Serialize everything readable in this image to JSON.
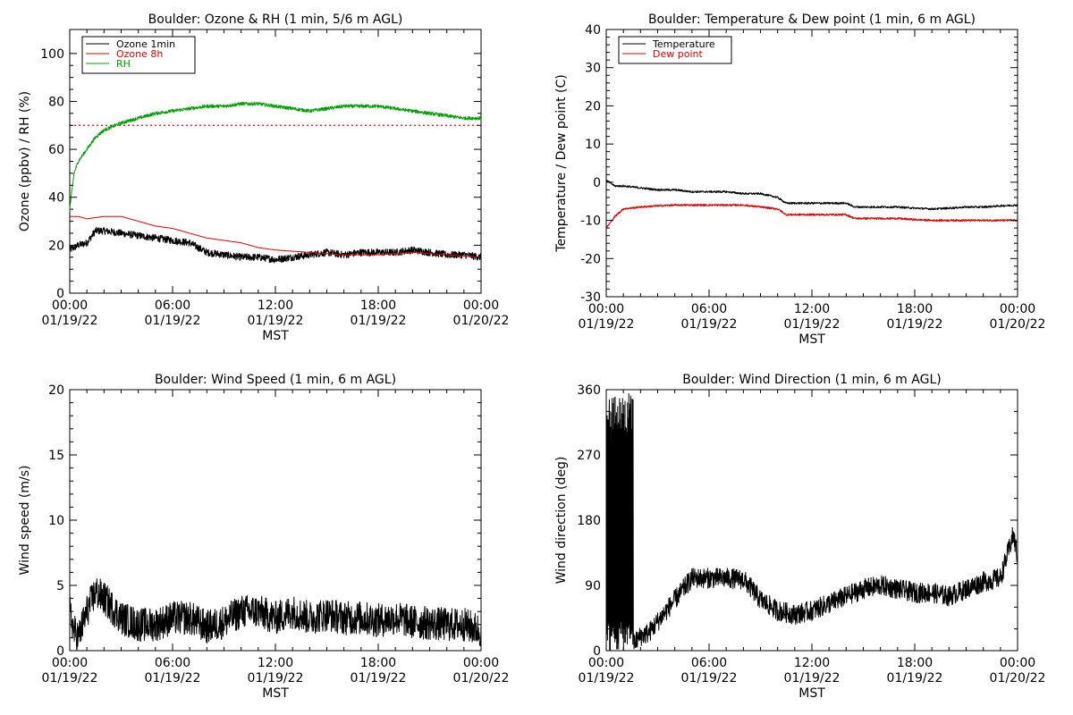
{
  "colors": {
    "black": "#000000",
    "red": "#e00000",
    "green": "#00a000"
  },
  "xaxis": {
    "tick_times": [
      "00:00",
      "06:00",
      "12:00",
      "18:00",
      "00:00"
    ],
    "tick_dates": [
      "01/19/22",
      "01/19/22",
      "01/19/22",
      "01/19/22",
      "01/20/22"
    ],
    "xlabel": "MST"
  },
  "chart_data": [
    {
      "type": "line",
      "title": "Boulder: Ozone & RH (1 min, 5/6 m AGL)",
      "ylabel": "Ozone (ppbv) / RH (%)",
      "xlim": [
        "01/19/22 00:00",
        "01/20/22 00:00"
      ],
      "ylim": [
        0,
        110
      ],
      "yticks": [
        0,
        20,
        40,
        60,
        80,
        100
      ],
      "legend_position": "top-left",
      "reference_line": {
        "y": 70,
        "style": "dotted",
        "color": "#e00000"
      },
      "series": [
        {
          "name": "Ozone 1min",
          "color": "#000000",
          "noise": 1.5,
          "x": [
            "01/19/22 00:00",
            "01/19/22 00:30",
            "01/19/22 01:00",
            "01/19/22 01:30",
            "01/19/22 02:00",
            "01/19/22 03:00",
            "01/19/22 04:00",
            "01/19/22 05:00",
            "01/19/22 06:00",
            "01/19/22 07:00",
            "01/19/22 08:00",
            "01/19/22 09:00",
            "01/19/22 10:00",
            "01/19/22 11:00",
            "01/19/22 12:00",
            "01/19/22 13:00",
            "01/19/22 14:00",
            "01/19/22 15:00",
            "01/19/22 16:00",
            "01/19/22 17:00",
            "01/19/22 18:00",
            "01/19/22 19:00",
            "01/19/22 20:00",
            "01/19/22 21:00",
            "01/19/22 22:00",
            "01/19/22 23:00",
            "01/20/22 00:00"
          ],
          "y": [
            18,
            20,
            21,
            26,
            26,
            25,
            24,
            23,
            22,
            21,
            17,
            16,
            15,
            15,
            14,
            15,
            16,
            17,
            16,
            17,
            17,
            17,
            18,
            17,
            16,
            16,
            15
          ]
        },
        {
          "name": "Ozone 8h",
          "color": "#e00000",
          "noise": 0,
          "x": [
            "01/19/22 00:00",
            "01/19/22 00:30",
            "01/19/22 01:00",
            "01/19/22 02:00",
            "01/19/22 03:00",
            "01/19/22 04:00",
            "01/19/22 05:00",
            "01/19/22 06:00",
            "01/19/22 07:00",
            "01/19/22 08:00",
            "01/19/22 09:00",
            "01/19/22 10:00",
            "01/19/22 11:00",
            "01/19/22 12:00",
            "01/19/22 14:00",
            "01/19/22 16:00",
            "01/19/22 18:00",
            "01/19/22 20:00",
            "01/19/22 22:00",
            "01/20/22 00:00"
          ],
          "y": [
            32,
            32,
            31,
            32,
            32,
            30,
            28,
            27,
            25,
            23,
            22,
            21,
            19,
            18,
            17,
            16,
            16,
            17,
            16,
            15
          ]
        },
        {
          "name": "RH",
          "color": "#00a000",
          "noise": 0.7,
          "x": [
            "01/19/22 00:00",
            "01/19/22 00:15",
            "01/19/22 00:30",
            "01/19/22 01:00",
            "01/19/22 01:30",
            "01/19/22 02:00",
            "01/19/22 03:00",
            "01/19/22 04:00",
            "01/19/22 05:00",
            "01/19/22 06:00",
            "01/19/22 07:00",
            "01/19/22 08:00",
            "01/19/22 09:00",
            "01/19/22 10:00",
            "01/19/22 11:00",
            "01/19/22 12:00",
            "01/19/22 13:00",
            "01/19/22 14:00",
            "01/19/22 15:00",
            "01/19/22 16:00",
            "01/19/22 17:00",
            "01/19/22 18:00",
            "01/19/22 19:00",
            "01/19/22 20:00",
            "01/19/22 21:00",
            "01/19/22 22:00",
            "01/19/22 23:00",
            "01/20/22 00:00"
          ],
          "y": [
            35,
            50,
            55,
            60,
            65,
            68,
            71,
            73,
            75,
            76,
            77,
            78,
            78,
            79,
            79,
            78,
            77,
            76,
            77,
            78,
            78,
            78,
            77,
            76,
            75,
            74,
            73,
            73
          ]
        }
      ]
    },
    {
      "type": "line",
      "title": "Boulder: Temperature & Dew point (1 min, 6 m AGL)",
      "ylabel": "Temperature / Dew point (C)",
      "xlim": [
        "01/19/22 00:00",
        "01/20/22 00:00"
      ],
      "ylim": [
        -30,
        40
      ],
      "yticks": [
        -30,
        -20,
        -10,
        0,
        10,
        20,
        30,
        40
      ],
      "legend_position": "top-left",
      "series": [
        {
          "name": "Temperature",
          "color": "#000000",
          "noise": 0.25,
          "x": [
            "01/19/22 00:00",
            "01/19/22 00:30",
            "01/19/22 01:00",
            "01/19/22 02:00",
            "01/19/22 03:00",
            "01/19/22 04:00",
            "01/19/22 05:00",
            "01/19/22 06:00",
            "01/19/22 07:00",
            "01/19/22 08:00",
            "01/19/22 09:00",
            "01/19/22 10:00",
            "01/19/22 10:30",
            "01/19/22 11:00",
            "01/19/22 12:00",
            "01/19/22 13:00",
            "01/19/22 14:00",
            "01/19/22 14:30",
            "01/19/22 15:00",
            "01/19/22 16:00",
            "01/19/22 17:00",
            "01/19/22 18:00",
            "01/19/22 19:00",
            "01/19/22 20:00",
            "01/19/22 21:00",
            "01/19/22 22:00",
            "01/19/22 23:00",
            "01/20/22 00:00"
          ],
          "y": [
            0.5,
            -1,
            -1,
            -1.5,
            -2,
            -2,
            -2.5,
            -2.5,
            -2.5,
            -3,
            -3,
            -4,
            -5.5,
            -5.5,
            -5.5,
            -5.5,
            -5.5,
            -6.5,
            -6.5,
            -6.5,
            -6.5,
            -6.8,
            -7,
            -6.8,
            -6.5,
            -6.5,
            -6.2,
            -6
          ]
        },
        {
          "name": "Dew point",
          "color": "#e00000",
          "noise": 0.25,
          "x": [
            "01/19/22 00:00",
            "01/19/22 00:30",
            "01/19/22 01:00",
            "01/19/22 02:00",
            "01/19/22 03:00",
            "01/19/22 04:00",
            "01/19/22 05:00",
            "01/19/22 06:00",
            "01/19/22 07:00",
            "01/19/22 08:00",
            "01/19/22 09:00",
            "01/19/22 10:00",
            "01/19/22 10:30",
            "01/19/22 11:00",
            "01/19/22 12:00",
            "01/19/22 13:00",
            "01/19/22 14:00",
            "01/19/22 14:30",
            "01/19/22 15:00",
            "01/19/22 16:00",
            "01/19/22 17:00",
            "01/19/22 18:00",
            "01/19/22 19:00",
            "01/19/22 20:00",
            "01/19/22 21:00",
            "01/19/22 22:00",
            "01/19/22 23:00",
            "01/20/22 00:00"
          ],
          "y": [
            -12,
            -9,
            -7,
            -6.5,
            -6.2,
            -6,
            -6,
            -6,
            -6,
            -6,
            -6.5,
            -7,
            -8.5,
            -8.5,
            -8.5,
            -8.5,
            -8.5,
            -9.5,
            -9.5,
            -9.5,
            -9.5,
            -9.8,
            -10,
            -10,
            -10,
            -10,
            -10,
            -10
          ]
        }
      ]
    },
    {
      "type": "line",
      "title": "Boulder: Wind Speed (1 min, 6 m AGL)",
      "ylabel": "Wind speed (m/s)",
      "xlim": [
        "01/19/22 00:00",
        "01/20/22 00:00"
      ],
      "ylim": [
        0,
        20
      ],
      "yticks": [
        0,
        5,
        10,
        15,
        20
      ],
      "series": [
        {
          "color": "#000000",
          "noise": 1.3,
          "x": [
            "01/19/22 00:00",
            "01/19/22 00:15",
            "01/19/22 00:30",
            "01/19/22 01:00",
            "01/19/22 01:30",
            "01/19/22 02:00",
            "01/19/22 03:00",
            "01/19/22 04:00",
            "01/19/22 05:00",
            "01/19/22 06:00",
            "01/19/22 07:00",
            "01/19/22 08:00",
            "01/19/22 09:00",
            "01/19/22 10:00",
            "01/19/22 11:00",
            "01/19/22 12:00",
            "01/19/22 13:00",
            "01/19/22 14:00",
            "01/19/22 15:00",
            "01/19/22 16:00",
            "01/19/22 17:00",
            "01/19/22 18:00",
            "01/19/22 19:00",
            "01/19/22 20:00",
            "01/19/22 21:00",
            "01/19/22 22:00",
            "01/19/22 23:00",
            "01/20/22 00:00"
          ],
          "y": [
            3,
            1.5,
            1,
            3,
            4.5,
            4,
            2.5,
            2,
            2,
            2.5,
            2.5,
            1.8,
            2.2,
            3,
            3,
            2.5,
            3,
            2.5,
            2.8,
            2.5,
            2.5,
            2.3,
            2.5,
            2.2,
            2.1,
            2,
            2,
            1.5
          ]
        }
      ]
    },
    {
      "type": "line",
      "title": "Boulder: Wind Direction (1 min, 6 m AGL)",
      "ylabel": "Wind direction (deg)",
      "xlim": [
        "01/19/22 00:00",
        "01/20/22 00:00"
      ],
      "ylim": [
        0,
        360
      ],
      "yticks": [
        0,
        90,
        180,
        270,
        360
      ],
      "series": [
        {
          "color": "#000000",
          "noise": 14,
          "spikes": {
            "from": "01/19/22 00:00",
            "to": "01/19/22 01:35",
            "low": 0,
            "high": 360
          },
          "x": [
            "01/19/22 01:35",
            "01/19/22 02:00",
            "01/19/22 02:30",
            "01/19/22 03:00",
            "01/19/22 04:00",
            "01/19/22 04:30",
            "01/19/22 05:00",
            "01/19/22 06:00",
            "01/19/22 07:00",
            "01/19/22 08:00",
            "01/19/22 08:30",
            "01/19/22 09:00",
            "01/19/22 10:00",
            "01/19/22 11:00",
            "01/19/22 12:00",
            "01/19/22 13:00",
            "01/19/22 14:00",
            "01/19/22 15:00",
            "01/19/22 16:00",
            "01/19/22 17:00",
            "01/19/22 18:00",
            "01/19/22 19:00",
            "01/19/22 20:00",
            "01/19/22 21:00",
            "01/19/22 22:00",
            "01/19/22 23:00",
            "01/19/22 23:45",
            "01/20/22 00:00"
          ],
          "y": [
            10,
            20,
            25,
            40,
            70,
            85,
            100,
            100,
            100,
            98,
            85,
            70,
            55,
            50,
            55,
            65,
            75,
            85,
            90,
            85,
            80,
            80,
            75,
            85,
            95,
            100,
            160,
            130
          ]
        }
      ]
    }
  ]
}
